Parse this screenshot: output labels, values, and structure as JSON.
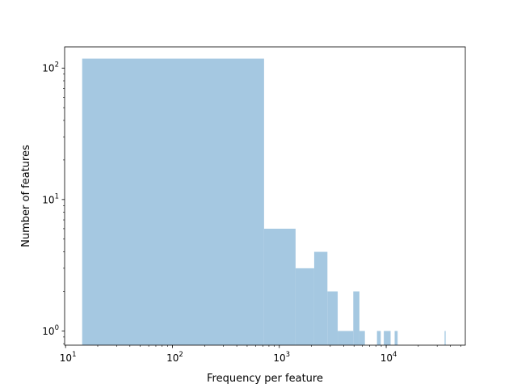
{
  "chart_data": {
    "type": "bar",
    "xlabel": "Frequency per feature",
    "ylabel": "Number of features",
    "xscale": "log",
    "yscale": "log",
    "xlim": [
      9.8,
      55000
    ],
    "ylim": [
      0.78,
      145
    ],
    "grid": false,
    "legend": "none",
    "bar_color": "#a5c8e1",
    "x_ticks": [
      {
        "base": "10",
        "exp": "1",
        "value": 10
      },
      {
        "base": "10",
        "exp": "2",
        "value": 100
      },
      {
        "base": "10",
        "exp": "3",
        "value": 1000
      },
      {
        "base": "10",
        "exp": "4",
        "value": 10000
      }
    ],
    "y_ticks": [
      {
        "base": "10",
        "exp": "0",
        "value": 1
      },
      {
        "base": "10",
        "exp": "1",
        "value": 10
      },
      {
        "base": "10",
        "exp": "2",
        "value": 100
      }
    ],
    "bins": [
      {
        "x0": 14.3,
        "x1": 720,
        "count": 118
      },
      {
        "x0": 720,
        "x1": 1420,
        "count": 6
      },
      {
        "x0": 1420,
        "x1": 2120,
        "count": 3
      },
      {
        "x0": 2120,
        "x1": 2820,
        "count": 4
      },
      {
        "x0": 2820,
        "x1": 3520,
        "count": 2
      },
      {
        "x0": 3520,
        "x1": 4920,
        "count": 1
      },
      {
        "x0": 4920,
        "x1": 5620,
        "count": 2
      },
      {
        "x0": 5620,
        "x1": 6320,
        "count": 1
      },
      {
        "x0": 8200,
        "x1": 8900,
        "count": 1
      },
      {
        "x0": 9500,
        "x1": 11000,
        "count": 1
      },
      {
        "x0": 12000,
        "x1": 12800,
        "count": 1
      },
      {
        "x0": 35200,
        "x1": 36000,
        "count": 1
      }
    ]
  }
}
